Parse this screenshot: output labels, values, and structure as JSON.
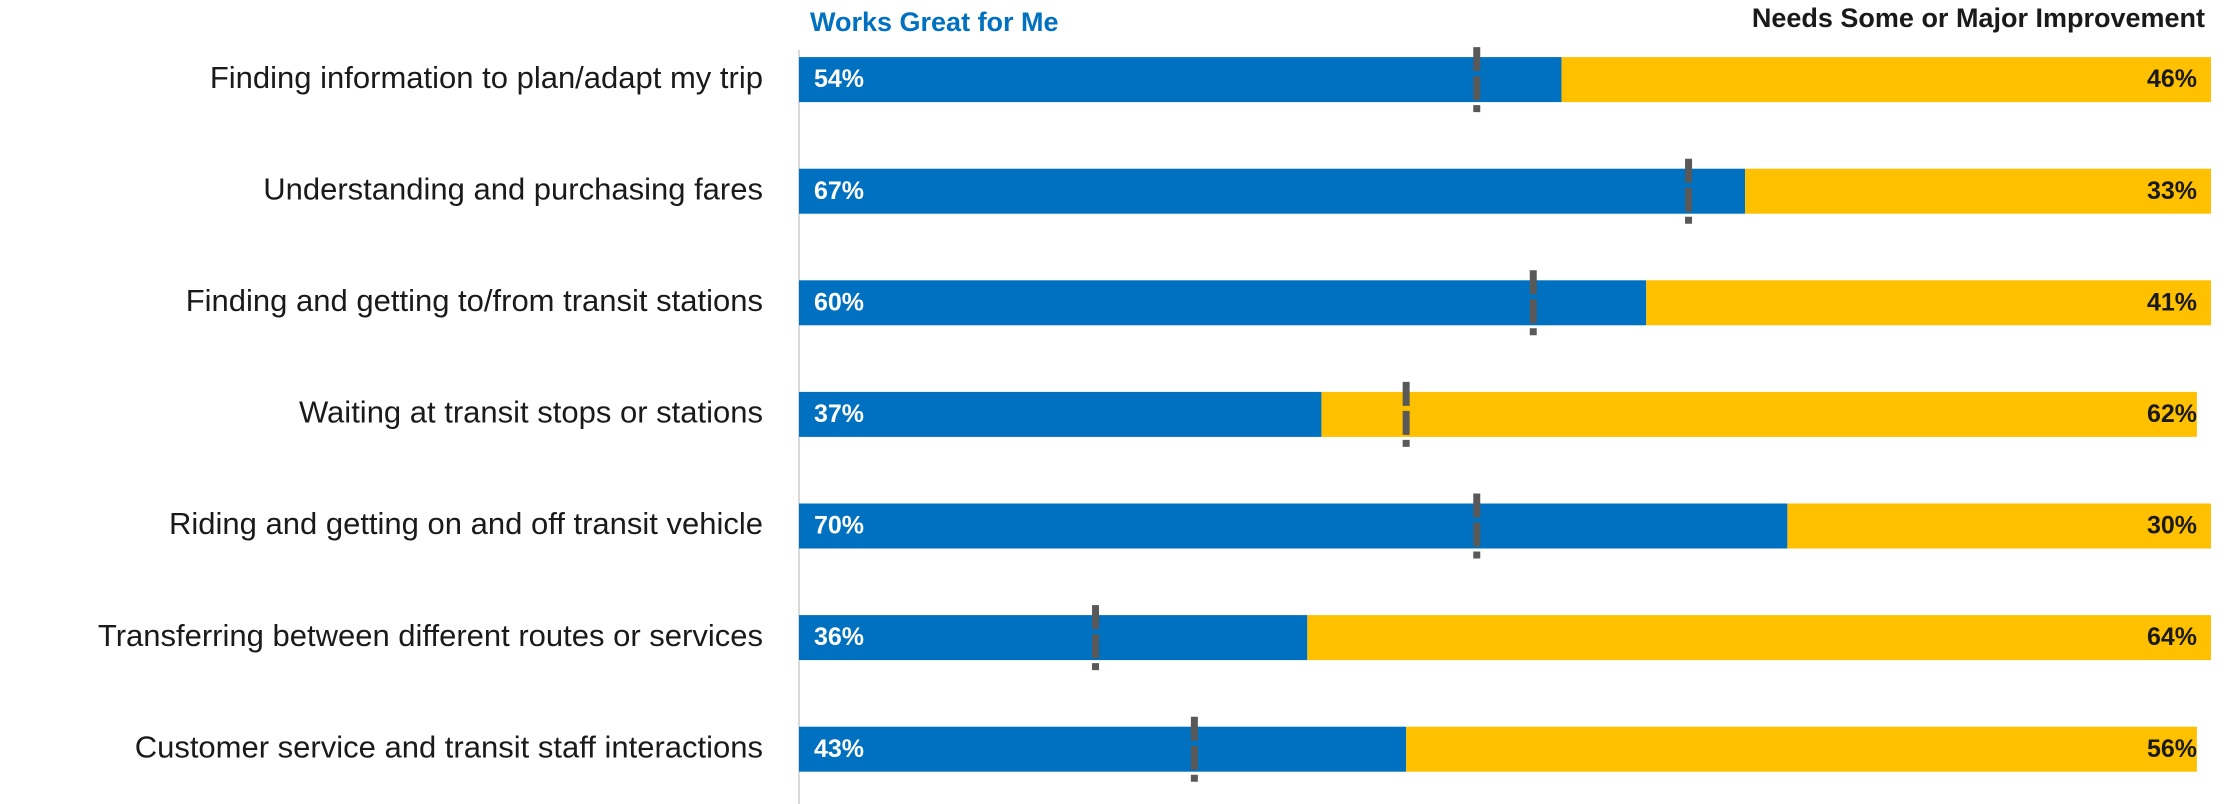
{
  "chart_data": {
    "type": "stacked-bar-horizontal",
    "categories": [
      "Finding information to plan/adapt my trip",
      "Understanding and purchasing fares",
      "Finding and getting to/from transit stations",
      "Waiting at transit stops or stations",
      "Riding and getting on and off transit vehicle",
      "Transferring between different routes or services",
      "Customer service and transit staff interactions"
    ],
    "series": [
      {
        "name": "Works Great for Me",
        "color": "#0070c0",
        "values": [
          54,
          67,
          60,
          37,
          70,
          36,
          43
        ],
        "value_labels": [
          "54%",
          "67%",
          "60%",
          "37%",
          "70%",
          "36%",
          "43%"
        ]
      },
      {
        "name": "Needs Some or Major Improvement",
        "color": "#ffc000",
        "values": [
          46,
          33,
          41,
          62,
          30,
          64,
          56
        ],
        "value_labels": [
          "46%",
          "33%",
          "41%",
          "62%",
          "30%",
          "64%",
          "56%"
        ]
      }
    ],
    "markers": {
      "color": "#595959",
      "values": [
        48,
        63,
        52,
        43,
        48,
        21,
        28
      ]
    },
    "xlim": [
      0,
      100
    ]
  }
}
